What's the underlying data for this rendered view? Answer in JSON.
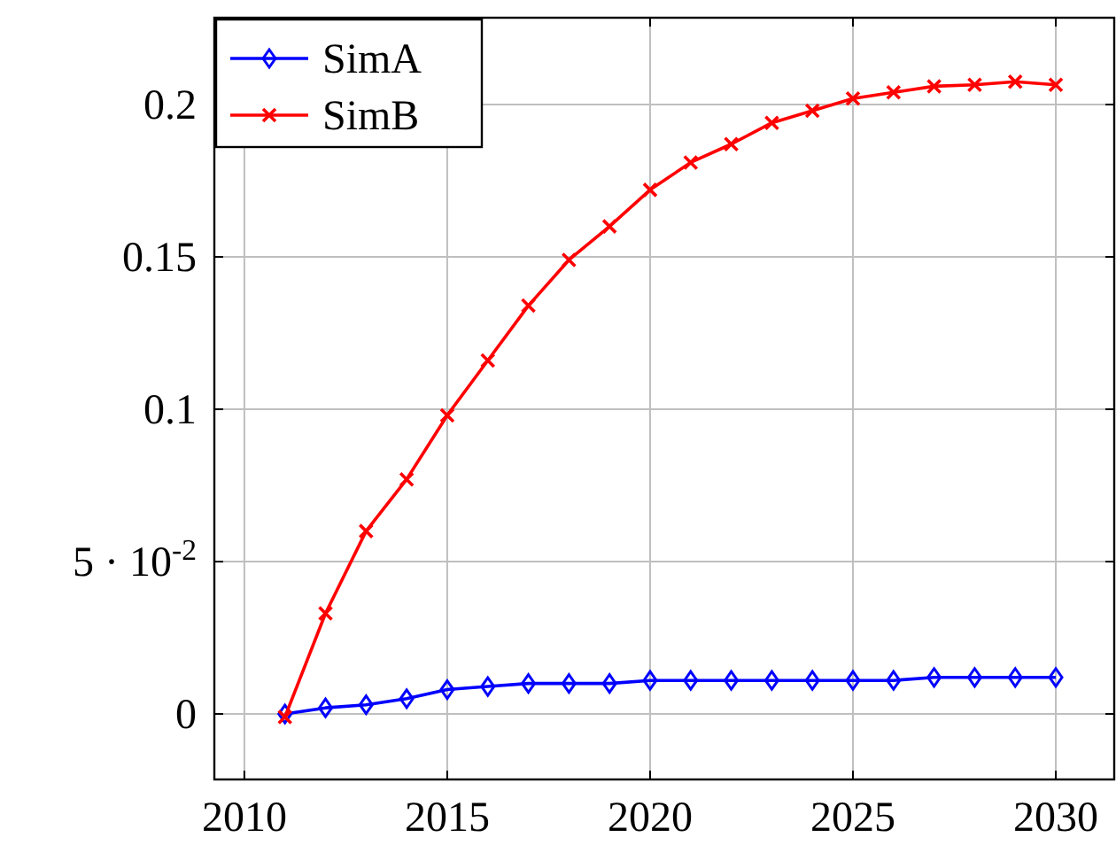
{
  "chart_data": {
    "type": "line",
    "x": [
      2011,
      2012,
      2013,
      2014,
      2015,
      2016,
      2017,
      2018,
      2019,
      2020,
      2021,
      2022,
      2023,
      2024,
      2025,
      2026,
      2027,
      2028,
      2029,
      2030
    ],
    "series": [
      {
        "name": "SimA",
        "color": "#0000ff",
        "marker": "diamond",
        "values": [
          0,
          0.002,
          0.003,
          0.005,
          0.008,
          0.009,
          0.01,
          0.01,
          0.01,
          0.011,
          0.011,
          0.011,
          0.011,
          0.011,
          0.011,
          0.011,
          0.012,
          0.012,
          0.012,
          0.012
        ]
      },
      {
        "name": "SimB",
        "color": "#ff0000",
        "marker": "cross",
        "values": [
          -0.001,
          0.033,
          0.06,
          0.077,
          0.098,
          0.116,
          0.134,
          0.149,
          0.16,
          0.172,
          0.181,
          0.187,
          0.194,
          0.198,
          0.202,
          0.204,
          0.206,
          0.2065,
          0.2075,
          0.2065
        ]
      }
    ],
    "xlim": [
      2009.26,
      2031.44
    ],
    "ylim": [
      -0.0215,
      0.2285
    ],
    "xticks": [
      2010,
      2015,
      2020,
      2025,
      2030
    ],
    "yticks": [
      0,
      {
        "value": 0.05,
        "label": "5 · 10$^{-2}$"
      },
      0.1,
      0.15,
      0.2
    ],
    "grid": true,
    "legend": "top left"
  }
}
